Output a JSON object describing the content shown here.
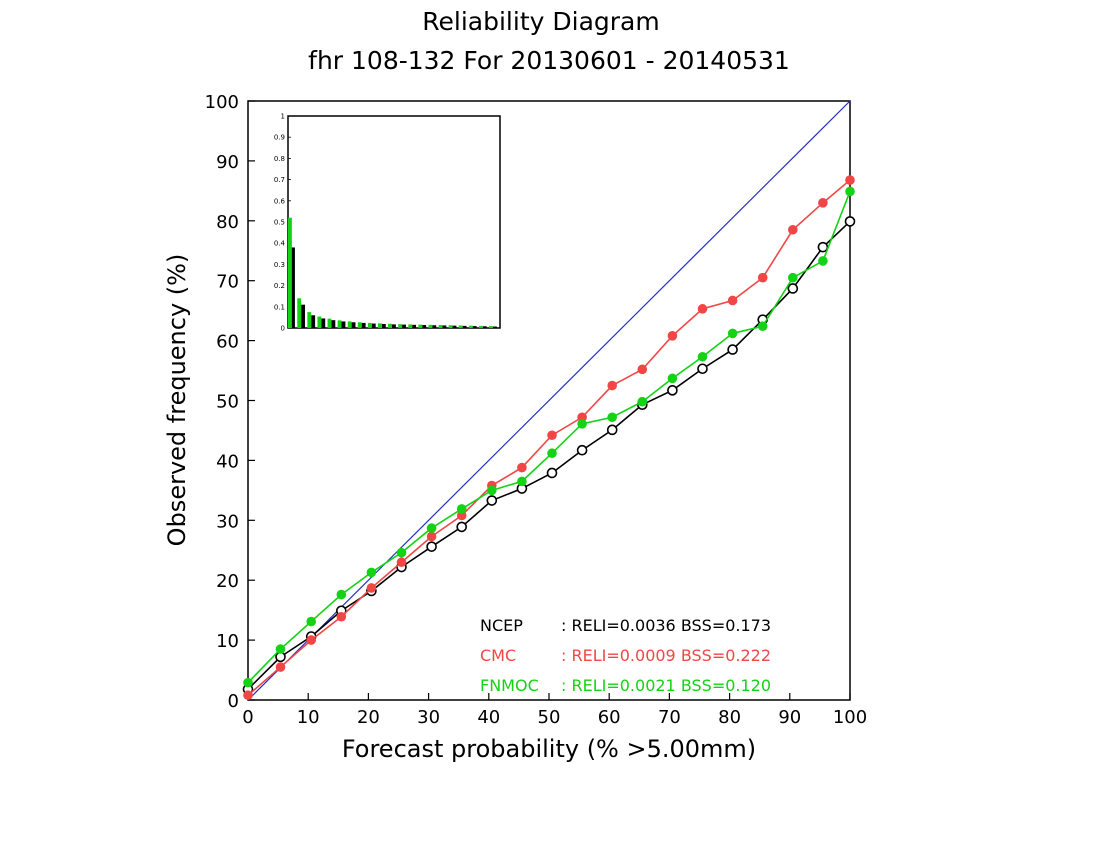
{
  "chart_data": {
    "type": "line",
    "title": "Reliability Diagram",
    "subtitle": "fhr 108-132 For 20130601 - 20140531",
    "xlabel": "Forecast probability (% >5.00mm)",
    "ylabel": "Observed frequency (%)",
    "xlim": [
      0,
      100
    ],
    "ylim": [
      0,
      100
    ],
    "xticks": [
      "0",
      "10",
      "20",
      "30",
      "40",
      "50",
      "60",
      "70",
      "80",
      "90",
      "100"
    ],
    "yticks": [
      "0",
      "10",
      "20",
      "30",
      "40",
      "50",
      "60",
      "70",
      "80",
      "90",
      "100"
    ],
    "diagonal_color": "#1f2fbf",
    "series": [
      {
        "name": "NCEP",
        "color": "#000000",
        "marker": "open-circle",
        "stats": ": RELI=0.0036 BSS=0.173",
        "x": [
          0,
          5.4,
          10.5,
          15.5,
          20.5,
          25.5,
          30.5,
          35.5,
          40.5,
          45.5,
          50.5,
          55.5,
          60.5,
          65.5,
          70.5,
          75.5,
          80.5,
          85.5,
          90.5,
          95.5,
          100
        ],
        "y": [
          1.8,
          7.2,
          10.6,
          14.9,
          18.2,
          22.2,
          25.6,
          28.9,
          33.3,
          35.3,
          37.9,
          41.7,
          45.1,
          49.3,
          51.7,
          55.3,
          58.5,
          63.5,
          68.7,
          75.6,
          79.9
        ]
      },
      {
        "name": "CMC",
        "color": "#f04646",
        "marker": "filled-circle",
        "stats": ": RELI=0.0009 BSS=0.222",
        "x": [
          0,
          5.4,
          10.5,
          15.5,
          20.5,
          25.5,
          30.5,
          35.5,
          40.5,
          45.5,
          50.5,
          55.5,
          60.5,
          65.5,
          70.5,
          75.5,
          80.5,
          85.5,
          90.5,
          95.5,
          100
        ],
        "y": [
          0.8,
          5.5,
          10.0,
          13.9,
          18.7,
          23.0,
          27.3,
          30.8,
          35.8,
          38.8,
          44.2,
          47.2,
          52.5,
          55.2,
          60.8,
          65.3,
          66.7,
          70.5,
          78.5,
          83.0,
          86.8
        ]
      },
      {
        "name": "FNMOC",
        "color": "#14d214",
        "marker": "filled-circle",
        "stats": ": RELI=0.0021 BSS=0.120",
        "x": [
          0,
          5.4,
          10.5,
          15.5,
          20.5,
          25.5,
          30.5,
          35.5,
          40.5,
          45.5,
          50.5,
          55.5,
          60.5,
          65.5,
          70.5,
          75.5,
          80.5,
          85.5,
          90.5,
          95.5,
          100
        ],
        "y": [
          2.9,
          8.5,
          13.1,
          17.6,
          21.3,
          24.6,
          28.7,
          31.9,
          35.0,
          36.5,
          41.2,
          46.1,
          47.2,
          49.8,
          53.7,
          57.3,
          61.2,
          62.4,
          70.5,
          73.3,
          84.9
        ]
      }
    ],
    "inset": {
      "type": "bar",
      "ylim": [
        0,
        1
      ],
      "yticks": [
        "0",
        "0.1",
        "0.2",
        "0.3",
        "0.4",
        "0.5",
        "0.6",
        "0.7",
        "0.8",
        "0.9",
        "1"
      ],
      "bin_count": 21,
      "series": [
        {
          "name": "NCEP",
          "color": "#000000",
          "values": [
            0.38,
            0.11,
            0.06,
            0.045,
            0.037,
            0.031,
            0.027,
            0.024,
            0.021,
            0.019,
            0.017,
            0.016,
            0.015,
            0.014,
            0.013,
            0.012,
            0.011,
            0.01,
            0.009,
            0.008,
            0.007
          ]
        },
        {
          "name": "FNMOC",
          "color": "#14d214",
          "values": [
            0.52,
            0.14,
            0.075,
            0.054,
            0.044,
            0.036,
            0.031,
            0.027,
            0.024,
            0.022,
            0.02,
            0.018,
            0.017,
            0.016,
            0.015,
            0.014,
            0.013,
            0.012,
            0.011,
            0.01,
            0.009
          ]
        }
      ]
    }
  }
}
